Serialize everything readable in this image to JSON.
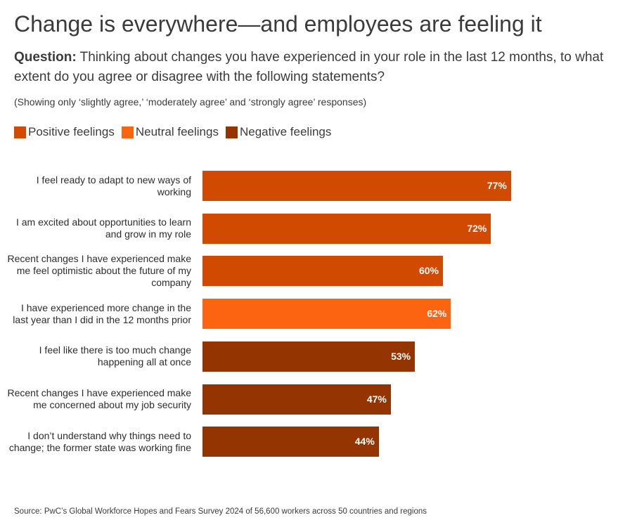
{
  "title": "Change is everywhere—and employees are feeling it",
  "question_label": "Question:",
  "question_text": " Thinking about changes you have experienced in your role in the last 12 months, to what extent do you agree or disagree with the following statements?",
  "note": "(Showing only ‘slightly agree,’ ‘moderately agree’ and ‘strongly agree’ responses)",
  "source": "Source: PwC’s Global Workforce Hopes and Fears Survey 2024 of 56,600 workers across 50 countries and regions",
  "colors": {
    "Positive feelings": "#D04A02",
    "Neutral feelings": "#FD6412",
    "Negative feelings": "#933401"
  },
  "chart_data": {
    "type": "bar",
    "orientation": "horizontal",
    "legend": [
      "Positive feelings",
      "Neutral feelings",
      "Negative feelings"
    ],
    "legend_placement": "top-left",
    "grid": false,
    "xlim": [
      0,
      100
    ],
    "categories": [
      "I feel ready to adapt to new ways of working",
      "I am excited about opportunities to learn and grow in my role",
      "Recent changes I have experienced make me feel optimistic about the future of my company",
      "I have experienced more change in the last year than I did in the 12 months prior",
      "I feel like there is too much change happening all at once",
      "Recent changes I have experienced make me concerned about my job security",
      "I don’t understand why things need to change; the former state was working fine"
    ],
    "values": [
      77,
      72,
      60,
      62,
      53,
      47,
      44
    ],
    "labels": [
      "77%",
      "72%",
      "60%",
      "62%",
      "53%",
      "47%",
      "44%"
    ],
    "groups": [
      "Positive feelings",
      "Positive feelings",
      "Positive feelings",
      "Neutral feelings",
      "Negative feelings",
      "Negative feelings",
      "Negative feelings"
    ]
  }
}
